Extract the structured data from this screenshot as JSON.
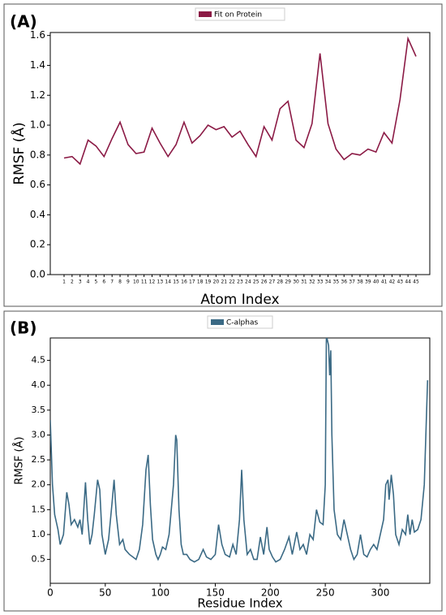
{
  "chart_data": [
    {
      "type": "line",
      "panel_label": "(A)",
      "x_label": "Atom Index",
      "y_label": "RMSF (Å)",
      "categories": [
        "1",
        "2",
        "3",
        "4",
        "5",
        "6",
        "7",
        "8",
        "9",
        "10",
        "11",
        "12",
        "13",
        "14",
        "15",
        "16",
        "17",
        "18",
        "19",
        "20",
        "21",
        "22",
        "23",
        "24",
        "25",
        "26",
        "27",
        "28",
        "29",
        "30",
        "31",
        "32",
        "33",
        "34",
        "35",
        "36",
        "37",
        "38",
        "39",
        "40",
        "41",
        "42",
        "43",
        "44",
        "45"
      ],
      "series": [
        {
          "name": "Fit on Protein",
          "color": "#8b1a45",
          "values": [
            0.78,
            0.79,
            0.74,
            0.9,
            0.86,
            0.79,
            0.91,
            1.02,
            0.87,
            0.81,
            0.82,
            0.98,
            0.88,
            0.79,
            0.87,
            1.02,
            0.88,
            0.93,
            1.0,
            0.97,
            0.99,
            0.92,
            0.96,
            0.87,
            0.79,
            0.99,
            0.9,
            1.11,
            1.16,
            0.9,
            0.85,
            1.01,
            1.48,
            1.01,
            0.84,
            0.77,
            0.81,
            0.8,
            0.84,
            0.82,
            0.95,
            0.88,
            1.17,
            1.58,
            1.46
          ]
        }
      ],
      "ylim": [
        0,
        1.62
      ],
      "yticks": [
        {
          "value": 0,
          "label": "0.0"
        },
        0.2,
        0.4,
        0.6,
        0.8,
        {
          "value": 1,
          "label": "1.0"
        },
        1.2,
        1.4,
        1.6
      ]
    },
    {
      "type": "line",
      "panel_label": "(B)",
      "x_label": "Residue Index",
      "y_label": "RMSF (Å)",
      "x": [
        0,
        2,
        4,
        7,
        9,
        12,
        15,
        17,
        19,
        22,
        25,
        27,
        29,
        32,
        34,
        36,
        38,
        40,
        43,
        45,
        47,
        50,
        53,
        56,
        58,
        60,
        63,
        66,
        68,
        72,
        75,
        78,
        81,
        84,
        87,
        89,
        91,
        93,
        96,
        98,
        100,
        102,
        105,
        108,
        110,
        112,
        114,
        115,
        117,
        119,
        121,
        124,
        127,
        131,
        135,
        139,
        142,
        146,
        150,
        153,
        156,
        159,
        163,
        166,
        169,
        172,
        174,
        176,
        179,
        182,
        185,
        188,
        191,
        194,
        197,
        199,
        202,
        205,
        209,
        213,
        217,
        220,
        224,
        227,
        230,
        233,
        236,
        239,
        242,
        245,
        248,
        250,
        251,
        253,
        254,
        255,
        256,
        258,
        261,
        264,
        267,
        270,
        273,
        276,
        279,
        282,
        285,
        288,
        291,
        294,
        297,
        300,
        303,
        305,
        307,
        308,
        310,
        312,
        314,
        317,
        320,
        323,
        325,
        327,
        329,
        331,
        334,
        337,
        340,
        343
      ],
      "series": [
        {
          "name": "C-alphas",
          "color": "#3b6a85",
          "values": [
            3.3,
            2.0,
            1.4,
            1.1,
            0.8,
            1.0,
            1.85,
            1.6,
            1.2,
            1.3,
            1.15,
            1.3,
            1.0,
            2.05,
            1.3,
            0.8,
            1.0,
            1.4,
            2.1,
            1.9,
            1.0,
            0.6,
            0.9,
            1.6,
            2.1,
            1.4,
            0.8,
            0.9,
            0.7,
            0.6,
            0.55,
            0.5,
            0.7,
            1.2,
            2.3,
            2.6,
            1.6,
            0.9,
            0.6,
            0.5,
            0.6,
            0.75,
            0.7,
            1.0,
            1.5,
            2.0,
            3.0,
            2.9,
            1.5,
            0.8,
            0.6,
            0.6,
            0.5,
            0.45,
            0.5,
            0.7,
            0.55,
            0.5,
            0.6,
            1.2,
            0.8,
            0.6,
            0.55,
            0.8,
            0.6,
            1.3,
            2.3,
            1.3,
            0.6,
            0.7,
            0.5,
            0.5,
            0.95,
            0.6,
            1.15,
            0.7,
            0.55,
            0.45,
            0.5,
            0.7,
            0.95,
            0.6,
            1.05,
            0.7,
            0.8,
            0.6,
            1.0,
            0.9,
            1.5,
            1.25,
            1.2,
            2.0,
            5.0,
            4.8,
            4.2,
            4.7,
            3.0,
            1.5,
            1.0,
            0.9,
            1.3,
            1.0,
            0.7,
            0.5,
            0.6,
            1.0,
            0.6,
            0.55,
            0.7,
            0.8,
            0.7,
            1.0,
            1.3,
            2.0,
            2.1,
            1.7,
            2.2,
            1.8,
            1.0,
            0.8,
            1.1,
            1.0,
            1.4,
            1.0,
            1.3,
            1.05,
            1.1,
            1.3,
            2.0,
            4.1
          ]
        }
      ],
      "xlim": [
        0,
        345
      ],
      "xticks": [
        0,
        50,
        100,
        150,
        200,
        250,
        300
      ],
      "ylim": [
        0.02,
        4.95
      ],
      "yticks": [
        0.5,
        {
          "value": 1,
          "label": "1.0"
        },
        1.5,
        {
          "value": 2,
          "label": "2.0"
        },
        2.5,
        {
          "value": 3,
          "label": "3.0"
        },
        3.5,
        {
          "value": 4,
          "label": "4.0"
        },
        4.5
      ]
    }
  ]
}
